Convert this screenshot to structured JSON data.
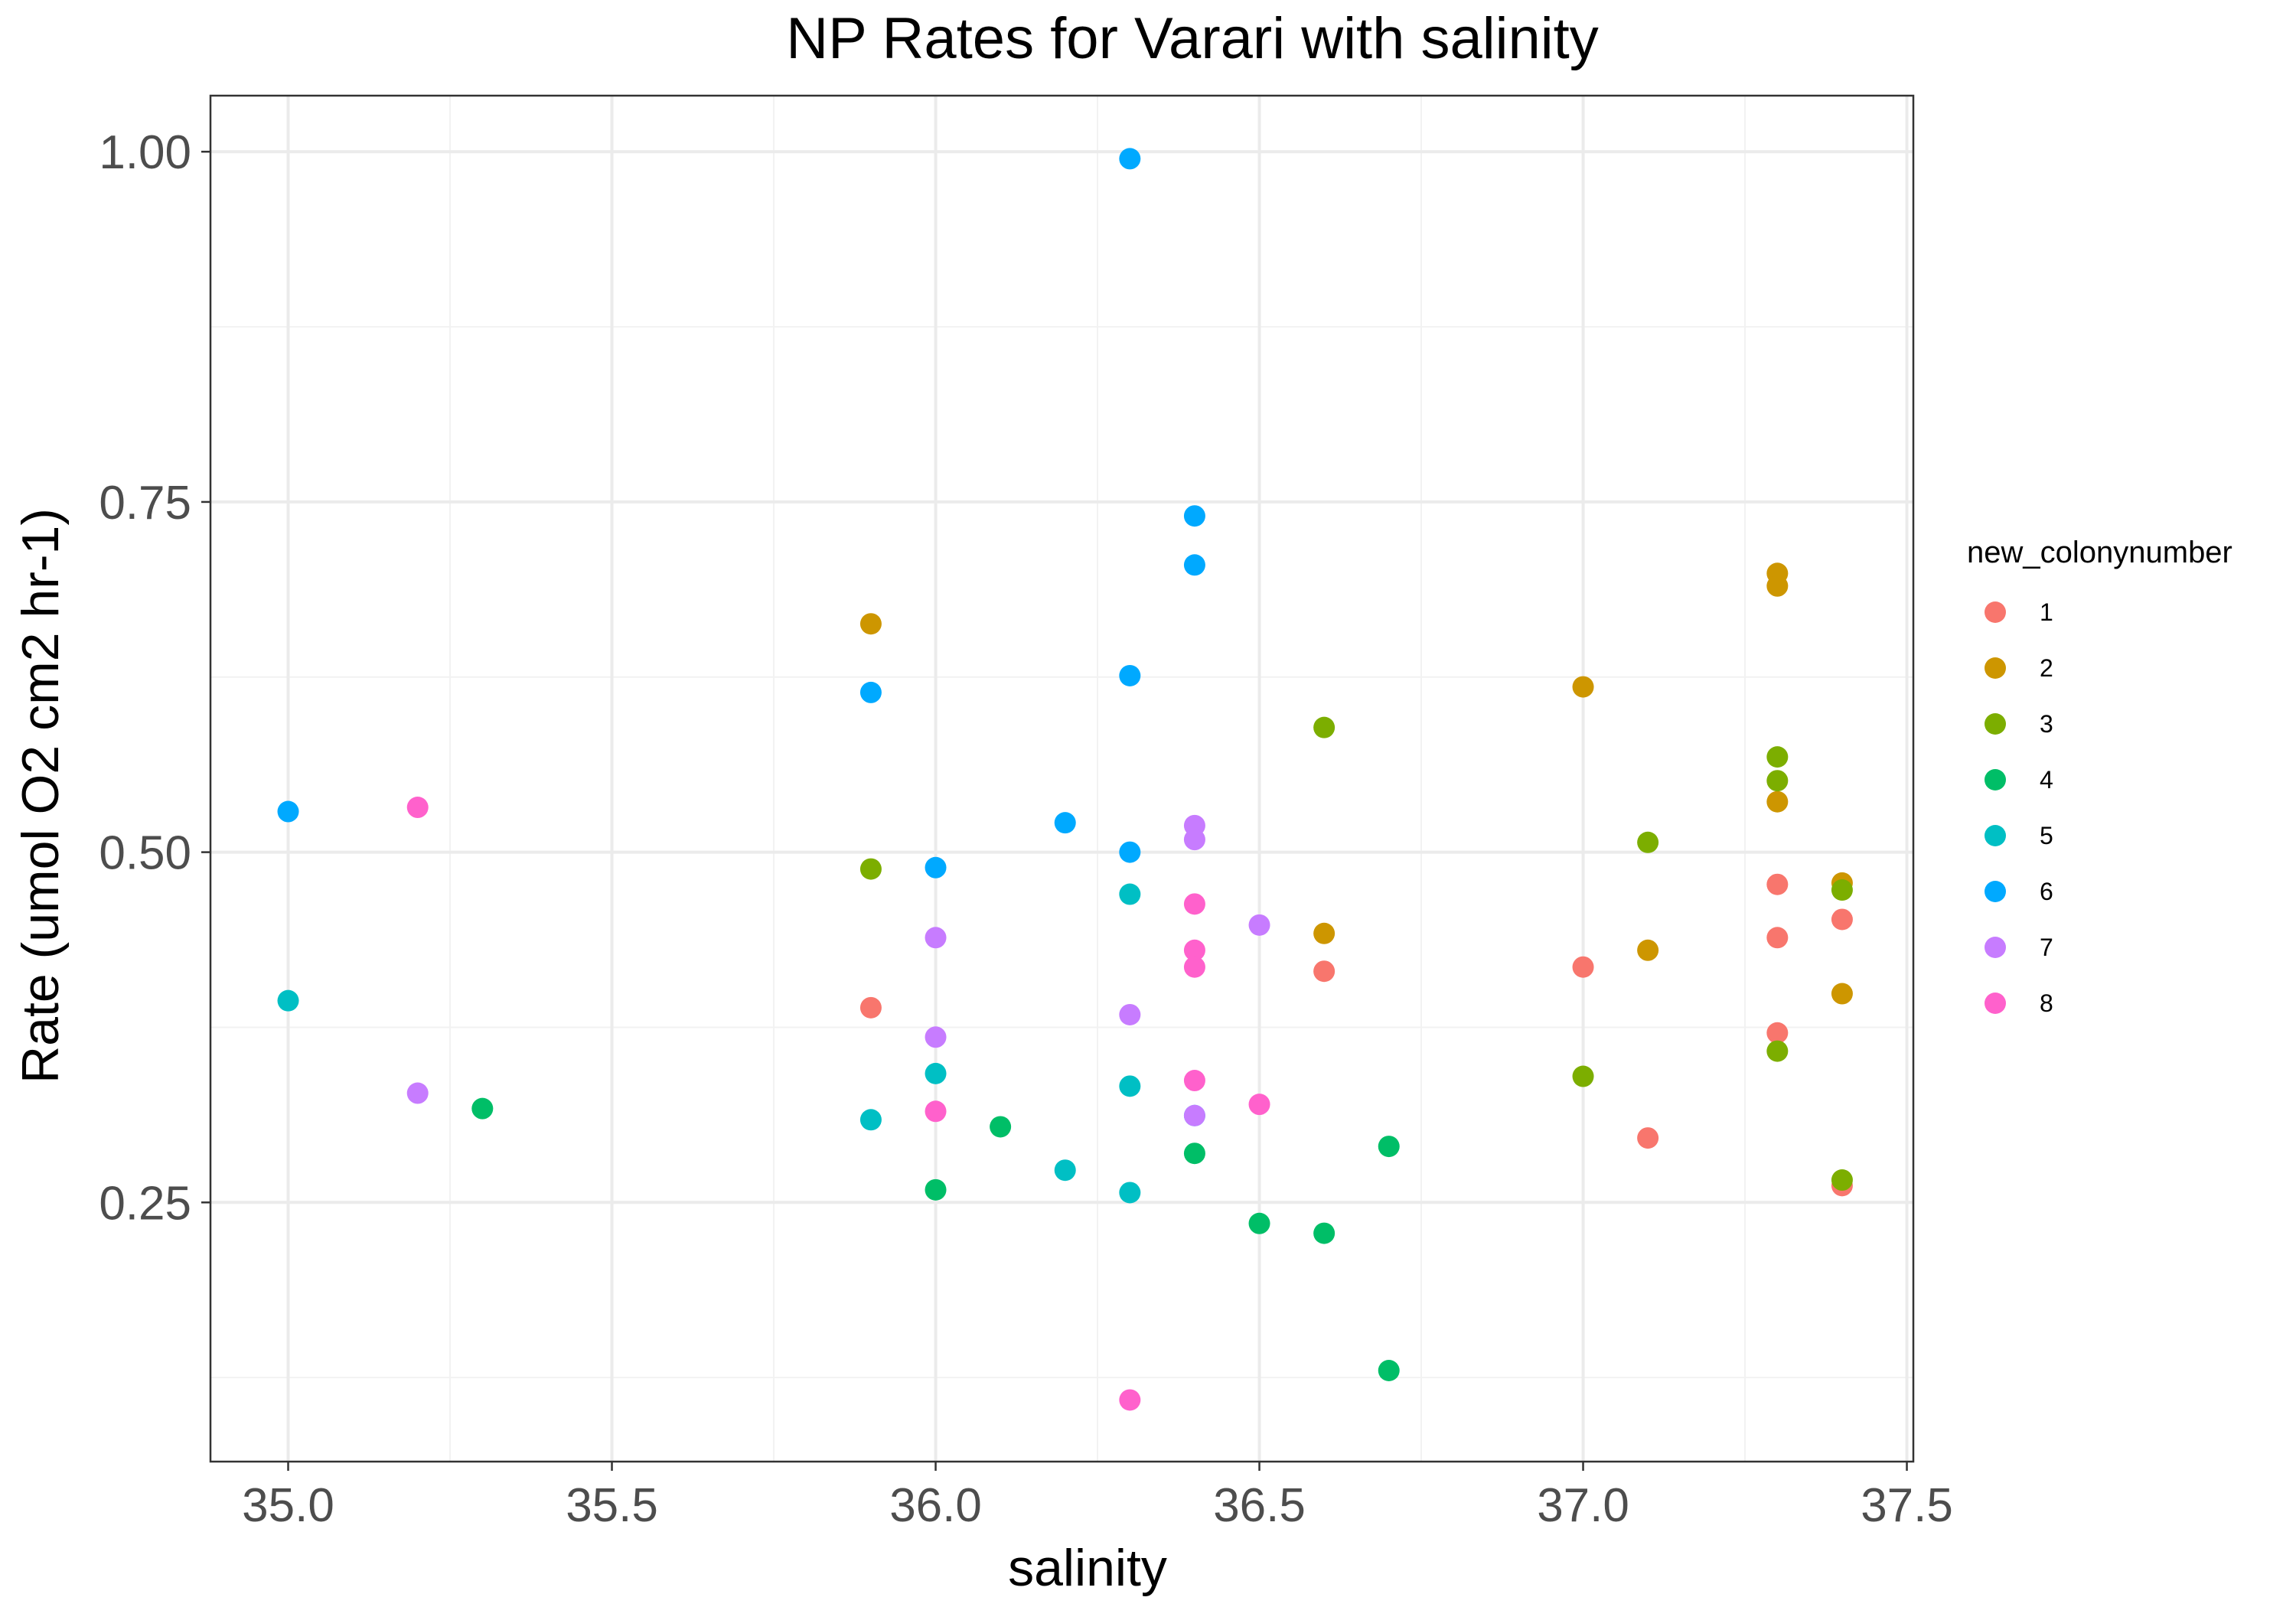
{
  "chart_data": {
    "type": "scatter",
    "title": "NP Rates for Varari with salinity",
    "xlabel": "salinity",
    "ylabel": "Rate (umol O2 cm2 hr-1)",
    "xlim": [
      34.88,
      37.51
    ],
    "ylim": [
      0.065,
      1.04
    ],
    "x_ticks": [
      35.0,
      35.5,
      36.0,
      36.5,
      37.0,
      37.5
    ],
    "x_tick_labels": [
      "35.0",
      "35.5",
      "36.0",
      "36.5",
      "37.0",
      "37.5"
    ],
    "y_ticks": [
      0.25,
      0.5,
      0.75,
      1.0
    ],
    "y_tick_labels": [
      "0.25",
      "0.50",
      "0.75",
      "1.00"
    ],
    "grid": true,
    "legend": {
      "title": "new_colonynumber",
      "position": "right"
    },
    "series": [
      {
        "name": "1",
        "color": "#F8766D",
        "points": [
          [
            35.9,
            0.389
          ],
          [
            36.6,
            0.415
          ],
          [
            37.0,
            0.418
          ],
          [
            37.1,
            0.296
          ],
          [
            37.3,
            0.477
          ],
          [
            37.3,
            0.439
          ],
          [
            37.3,
            0.371
          ],
          [
            37.4,
            0.452
          ],
          [
            37.4,
            0.262
          ]
        ]
      },
      {
        "name": "2",
        "color": "#CD9600",
        "points": [
          [
            35.9,
            0.663
          ],
          [
            36.6,
            0.442
          ],
          [
            37.0,
            0.618
          ],
          [
            37.1,
            0.43
          ],
          [
            37.3,
            0.699
          ],
          [
            37.3,
            0.69
          ],
          [
            37.3,
            0.536
          ],
          [
            37.4,
            0.478
          ],
          [
            37.4,
            0.399
          ]
        ]
      },
      {
        "name": "3",
        "color": "#7CAE00",
        "points": [
          [
            35.9,
            0.488
          ],
          [
            36.6,
            0.589
          ],
          [
            37.0,
            0.34
          ],
          [
            37.1,
            0.507
          ],
          [
            37.3,
            0.568
          ],
          [
            37.3,
            0.551
          ],
          [
            37.3,
            0.358
          ],
          [
            37.4,
            0.473
          ],
          [
            37.4,
            0.266
          ]
        ]
      },
      {
        "name": "4",
        "color": "#00BE67",
        "points": [
          [
            35.3,
            0.317
          ],
          [
            36.0,
            0.259
          ],
          [
            36.1,
            0.304
          ],
          [
            36.4,
            0.285
          ],
          [
            36.5,
            0.235
          ],
          [
            36.6,
            0.228
          ],
          [
            36.7,
            0.29
          ],
          [
            36.7,
            0.13
          ]
        ]
      },
      {
        "name": "5",
        "color": "#00BFC4",
        "points": [
          [
            35.0,
            0.394
          ],
          [
            35.9,
            0.309
          ],
          [
            36.0,
            0.342
          ],
          [
            36.2,
            0.273
          ],
          [
            36.3,
            0.47
          ],
          [
            36.3,
            0.333
          ],
          [
            36.3,
            0.257
          ]
        ]
      },
      {
        "name": "6",
        "color": "#00A9FF",
        "points": [
          [
            35.0,
            0.529
          ],
          [
            35.9,
            0.614
          ],
          [
            36.0,
            0.489
          ],
          [
            36.2,
            0.521
          ],
          [
            36.3,
            0.995
          ],
          [
            36.3,
            0.626
          ],
          [
            36.3,
            0.5
          ],
          [
            36.4,
            0.74
          ],
          [
            36.4,
            0.705
          ],
          [
            36.4,
            0.312
          ]
        ]
      },
      {
        "name": "7",
        "color": "#C77CFF",
        "points": [
          [
            35.2,
            0.328
          ],
          [
            36.0,
            0.439
          ],
          [
            36.0,
            0.368
          ],
          [
            36.3,
            0.384
          ],
          [
            36.4,
            0.519
          ],
          [
            36.4,
            0.509
          ],
          [
            36.4,
            0.312
          ],
          [
            36.5,
            0.448
          ]
        ]
      },
      {
        "name": "8",
        "color": "#FF61CC",
        "points": [
          [
            35.2,
            0.532
          ],
          [
            36.0,
            0.315
          ],
          [
            36.3,
            0.109
          ],
          [
            36.4,
            0.463
          ],
          [
            36.4,
            0.43
          ],
          [
            36.4,
            0.418
          ],
          [
            36.4,
            0.337
          ],
          [
            36.5,
            0.32
          ]
        ]
      }
    ]
  }
}
